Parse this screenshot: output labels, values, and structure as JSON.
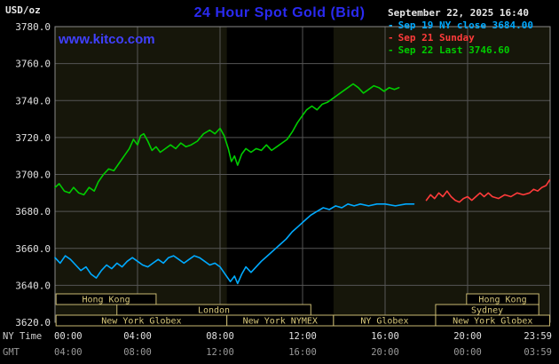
{
  "header": {
    "units": "USD/oz",
    "title": "24 Hour Spot Gold (Bid)",
    "datetime": "September 22, 2025 16:40",
    "website": "www.kitco.com"
  },
  "legend": {
    "items": [
      {
        "marker": "-",
        "label": "Sep 19 NY close 3684.00",
        "color": "#00aaff"
      },
      {
        "marker": "-",
        "label": "Sep 21 Sunday",
        "color": "#ff3b3b"
      },
      {
        "marker": "-",
        "label": "Sep 22 Last 3746.60",
        "color": "#00cc00"
      }
    ]
  },
  "axes": {
    "ny_time_label": "NY Time",
    "gmt_label": "GMT"
  },
  "sessions": {
    "fill": "#000000",
    "border": "#c9b972",
    "text": "#d8c87a",
    "rows": [
      [
        {
          "label": "Hong Kong",
          "start": 0.05,
          "end": 4.9
        },
        {
          "label": "Hong Kong",
          "start": 19.95,
          "end": 23.45
        }
      ],
      [
        {
          "label": "London",
          "start": 3.0,
          "end": 12.4
        },
        {
          "label": "Sydney",
          "start": 18.45,
          "end": 23.45
        }
      ],
      [
        {
          "label": "New York Globex",
          "start": 0.05,
          "end": 8.33
        },
        {
          "label": "New York NYMEX",
          "start": 8.33,
          "end": 13.5
        },
        {
          "label": "NY Globex",
          "start": 13.5,
          "end": 18.45
        },
        {
          "label": "New York Globex",
          "start": 18.45,
          "end": 23.98
        }
      ]
    ]
  },
  "chart_data": {
    "type": "line",
    "title": "24 Hour Spot Gold (Bid)",
    "xlabel": "NY Time",
    "ylabel": "USD/oz",
    "xlim": [
      0,
      24
    ],
    "ylim": [
      3620,
      3780
    ],
    "grid": true,
    "y_ticks": [
      3620,
      3640,
      3660,
      3680,
      3700,
      3720,
      3740,
      3760,
      3780
    ],
    "y_tick_labels": [
      "3620.0",
      "3640.0",
      "3660.0",
      "3680.0",
      "3700.0",
      "3720.0",
      "3740.0",
      "3760.0",
      "3780.0"
    ],
    "x_ticks": [
      {
        "hour": 0,
        "ny": "00:00",
        "gmt": "04:00"
      },
      {
        "hour": 4,
        "ny": "04:00",
        "gmt": "08:00"
      },
      {
        "hour": 8,
        "ny": "08:00",
        "gmt": "12:00"
      },
      {
        "hour": 12,
        "ny": "12:00",
        "gmt": "16:00"
      },
      {
        "hour": 16,
        "ny": "16:00",
        "gmt": "20:00"
      },
      {
        "hour": 20,
        "ny": "20:00",
        "gmt": "00:00"
      },
      {
        "hour": 23.983,
        "ny": "23:59",
        "gmt": "03:59"
      }
    ],
    "nymex_band_hours": [
      8.33,
      13.5
    ],
    "colors": {
      "plot_bg": "#16160a",
      "band": "#000000",
      "grid": "#555555",
      "border": "#8a8a8a",
      "tick_text": "#e0e0e0",
      "gmt_text": "#9a9a9a"
    },
    "series": [
      {
        "name": "Sep 19 NY close",
        "color": "#00aaff",
        "points": [
          [
            0,
            3655
          ],
          [
            0.25,
            3652
          ],
          [
            0.5,
            3656
          ],
          [
            0.75,
            3654
          ],
          [
            1.0,
            3651
          ],
          [
            1.25,
            3648
          ],
          [
            1.5,
            3650
          ],
          [
            1.75,
            3646
          ],
          [
            2.0,
            3644
          ],
          [
            2.25,
            3648
          ],
          [
            2.5,
            3651
          ],
          [
            2.75,
            3649
          ],
          [
            3.0,
            3652
          ],
          [
            3.25,
            3650
          ],
          [
            3.5,
            3653
          ],
          [
            3.75,
            3655
          ],
          [
            4.0,
            3653
          ],
          [
            4.25,
            3651
          ],
          [
            4.5,
            3650
          ],
          [
            4.75,
            3652
          ],
          [
            5.0,
            3654
          ],
          [
            5.25,
            3652
          ],
          [
            5.5,
            3655
          ],
          [
            5.75,
            3656
          ],
          [
            6.0,
            3654
          ],
          [
            6.25,
            3652
          ],
          [
            6.5,
            3654
          ],
          [
            6.75,
            3656
          ],
          [
            7.0,
            3655
          ],
          [
            7.25,
            3653
          ],
          [
            7.5,
            3651
          ],
          [
            7.75,
            3652
          ],
          [
            8.0,
            3650
          ],
          [
            8.25,
            3646
          ],
          [
            8.5,
            3642
          ],
          [
            8.7,
            3645
          ],
          [
            8.85,
            3641
          ],
          [
            9.05,
            3646
          ],
          [
            9.25,
            3650
          ],
          [
            9.5,
            3647
          ],
          [
            9.75,
            3650
          ],
          [
            10.0,
            3653
          ],
          [
            10.3,
            3656
          ],
          [
            10.6,
            3659
          ],
          [
            10.9,
            3662
          ],
          [
            11.2,
            3665
          ],
          [
            11.5,
            3669
          ],
          [
            11.8,
            3672
          ],
          [
            12.1,
            3675
          ],
          [
            12.4,
            3678
          ],
          [
            12.7,
            3680
          ],
          [
            13.0,
            3682
          ],
          [
            13.3,
            3681
          ],
          [
            13.6,
            3683
          ],
          [
            13.9,
            3682
          ],
          [
            14.2,
            3684
          ],
          [
            14.5,
            3683
          ],
          [
            14.8,
            3684
          ],
          [
            15.2,
            3683
          ],
          [
            15.6,
            3684
          ],
          [
            16.0,
            3684
          ],
          [
            16.5,
            3683
          ],
          [
            17.0,
            3684
          ],
          [
            17.4,
            3684
          ]
        ]
      },
      {
        "name": "Sep 21 Sunday",
        "color": "#ff3b3b",
        "points": [
          [
            18.0,
            3686
          ],
          [
            18.2,
            3689
          ],
          [
            18.4,
            3687
          ],
          [
            18.6,
            3690
          ],
          [
            18.8,
            3688
          ],
          [
            19.0,
            3691
          ],
          [
            19.2,
            3688
          ],
          [
            19.4,
            3686
          ],
          [
            19.6,
            3685
          ],
          [
            19.8,
            3687
          ],
          [
            20.0,
            3688
          ],
          [
            20.2,
            3686
          ],
          [
            20.4,
            3688
          ],
          [
            20.6,
            3690
          ],
          [
            20.8,
            3688
          ],
          [
            21.0,
            3690
          ],
          [
            21.2,
            3688
          ],
          [
            21.5,
            3687
          ],
          [
            21.8,
            3689
          ],
          [
            22.1,
            3688
          ],
          [
            22.4,
            3690
          ],
          [
            22.7,
            3689
          ],
          [
            23.0,
            3690
          ],
          [
            23.2,
            3692
          ],
          [
            23.4,
            3691
          ],
          [
            23.6,
            3693
          ],
          [
            23.8,
            3694
          ],
          [
            23.98,
            3697
          ]
        ]
      },
      {
        "name": "Sep 22 Last",
        "color": "#00cc00",
        "points": [
          [
            0,
            3693
          ],
          [
            0.2,
            3695
          ],
          [
            0.45,
            3691
          ],
          [
            0.7,
            3690
          ],
          [
            0.9,
            3693
          ],
          [
            1.15,
            3690
          ],
          [
            1.4,
            3689
          ],
          [
            1.65,
            3693
          ],
          [
            1.9,
            3691
          ],
          [
            2.1,
            3696
          ],
          [
            2.35,
            3700
          ],
          [
            2.6,
            3703
          ],
          [
            2.85,
            3702
          ],
          [
            3.1,
            3706
          ],
          [
            3.35,
            3710
          ],
          [
            3.6,
            3714
          ],
          [
            3.8,
            3719
          ],
          [
            4.0,
            3716
          ],
          [
            4.15,
            3721
          ],
          [
            4.3,
            3722
          ],
          [
            4.5,
            3718
          ],
          [
            4.7,
            3713
          ],
          [
            4.9,
            3715
          ],
          [
            5.1,
            3712
          ],
          [
            5.35,
            3714
          ],
          [
            5.6,
            3716
          ],
          [
            5.85,
            3714
          ],
          [
            6.1,
            3717
          ],
          [
            6.35,
            3715
          ],
          [
            6.6,
            3716
          ],
          [
            6.9,
            3718
          ],
          [
            7.2,
            3722
          ],
          [
            7.5,
            3724
          ],
          [
            7.75,
            3722
          ],
          [
            8.0,
            3725
          ],
          [
            8.2,
            3721
          ],
          [
            8.4,
            3714
          ],
          [
            8.55,
            3707
          ],
          [
            8.7,
            3710
          ],
          [
            8.85,
            3705
          ],
          [
            9.05,
            3711
          ],
          [
            9.25,
            3714
          ],
          [
            9.5,
            3712
          ],
          [
            9.75,
            3714
          ],
          [
            10.0,
            3713
          ],
          [
            10.25,
            3716
          ],
          [
            10.5,
            3713
          ],
          [
            10.75,
            3715
          ],
          [
            11.0,
            3717
          ],
          [
            11.25,
            3719
          ],
          [
            11.5,
            3723
          ],
          [
            11.75,
            3728
          ],
          [
            12.0,
            3732
          ],
          [
            12.2,
            3735
          ],
          [
            12.45,
            3737
          ],
          [
            12.7,
            3735
          ],
          [
            12.95,
            3738
          ],
          [
            13.2,
            3739
          ],
          [
            13.45,
            3741
          ],
          [
            13.7,
            3743
          ],
          [
            13.95,
            3745
          ],
          [
            14.2,
            3747
          ],
          [
            14.45,
            3749
          ],
          [
            14.7,
            3747
          ],
          [
            14.95,
            3744
          ],
          [
            15.2,
            3746
          ],
          [
            15.45,
            3748
          ],
          [
            15.7,
            3747
          ],
          [
            15.95,
            3745
          ],
          [
            16.2,
            3747
          ],
          [
            16.45,
            3746
          ],
          [
            16.67,
            3747
          ]
        ]
      }
    ]
  }
}
